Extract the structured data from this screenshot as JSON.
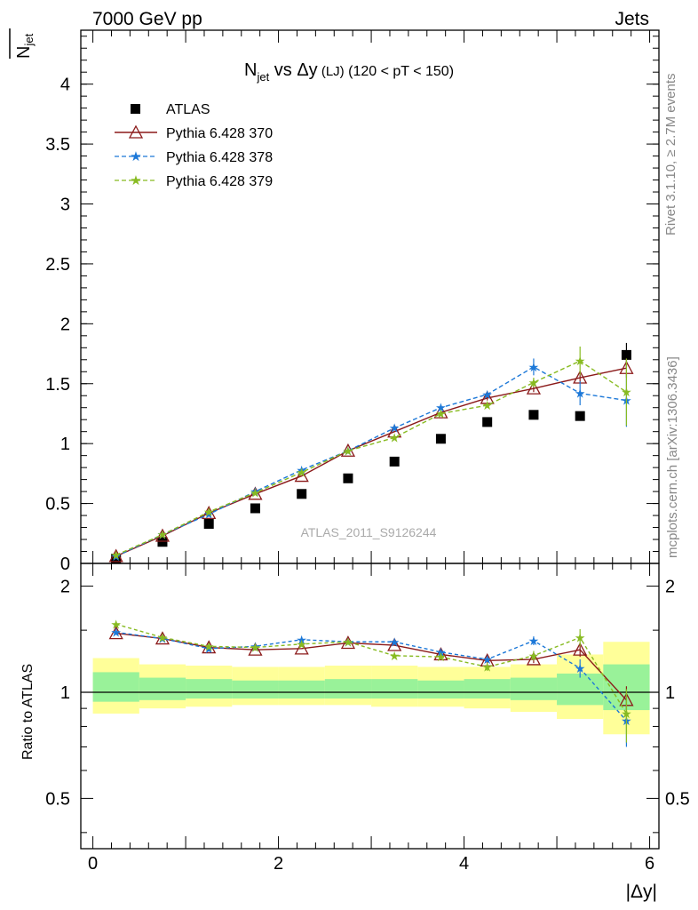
{
  "header": {
    "left": "7000 GeV pp",
    "right": "Jets"
  },
  "side_labels": {
    "rivet": "Rivet 3.1.10, ≥ 2.7M events",
    "mcplots": "mcplots.cern.ch [arXiv:1306.3436]"
  },
  "watermark": "ATLAS_2011_S9126244",
  "colors": {
    "atlas": "#000000",
    "p370": "#8b1a1a",
    "p378": "#1c78d8",
    "p379": "#88bb22",
    "band_outer": "#ffff99",
    "band_inner": "#99f299"
  },
  "chart_data": [
    {
      "type": "line",
      "title": {
        "n": "N",
        "sub": "jet",
        "vs": " vs ",
        "delta_y": "Δy",
        "lj": " (LJ)",
        "cut": " (120 < pT < 150)"
      },
      "ylabel": {
        "n": "N",
        "sub": "jet"
      },
      "xlabel": "|Δy|",
      "xlim": [
        -0.13,
        6.1
      ],
      "ylim": [
        0,
        4.45
      ],
      "y_ticks": [
        0,
        0.5,
        1,
        1.5,
        2,
        2.5,
        3,
        3.5,
        4
      ],
      "y_tick_labels": [
        "0",
        "0.5",
        "1",
        "1.5",
        "2",
        "2.5",
        "3",
        "3.5",
        "4"
      ],
      "x": [
        0.25,
        0.75,
        1.25,
        1.75,
        2.25,
        2.75,
        3.25,
        3.75,
        4.25,
        4.75,
        5.25,
        5.75
      ],
      "legend_position": "top-left",
      "series": [
        {
          "name": "ATLAS",
          "marker": "square",
          "color": "#000000",
          "line": false,
          "values": [
            0.04,
            0.18,
            0.33,
            0.46,
            0.58,
            0.71,
            0.85,
            1.04,
            1.18,
            1.24,
            1.23,
            1.74
          ],
          "errors": [
            0.01,
            0.01,
            0.01,
            0.01,
            0.01,
            0.01,
            0.01,
            0.01,
            0.01,
            0.01,
            0.01,
            0.1
          ]
        },
        {
          "name": "Pythia 6.428 370",
          "marker": "triangle",
          "color": "#8b1a1a",
          "dash": "",
          "values": [
            0.06,
            0.23,
            0.42,
            0.58,
            0.73,
            0.94,
            1.1,
            1.26,
            1.38,
            1.46,
            1.55,
            1.63
          ],
          "errors": [
            0,
            0,
            0,
            0,
            0,
            0,
            0,
            0,
            0.02,
            0.03,
            0.05,
            0.08
          ]
        },
        {
          "name": "Pythia 6.428 378",
          "marker": "star",
          "color": "#1c78d8",
          "dash": "5,3",
          "values": [
            0.06,
            0.24,
            0.41,
            0.6,
            0.78,
            0.94,
            1.13,
            1.3,
            1.41,
            1.64,
            1.42,
            1.36
          ],
          "errors": [
            0,
            0,
            0,
            0,
            0,
            0,
            0,
            0,
            0.02,
            0.07,
            0.1,
            0.22
          ]
        },
        {
          "name": "Pythia 6.428 379",
          "marker": "star",
          "color": "#88bb22",
          "dash": "5,3",
          "values": [
            0.07,
            0.24,
            0.43,
            0.59,
            0.76,
            0.94,
            1.05,
            1.25,
            1.32,
            1.51,
            1.69,
            1.43
          ],
          "errors": [
            0,
            0,
            0,
            0,
            0,
            0,
            0,
            0,
            0.02,
            0.04,
            0.12,
            0.28
          ]
        }
      ]
    },
    {
      "type": "line",
      "ylabel": "Ratio to ATLAS",
      "xlabel": "|Δy|",
      "xlim": [
        -0.13,
        6.1
      ],
      "ylim": [
        0.36,
        2.32
      ],
      "y_scale": "log",
      "y_ticks": [
        0.5,
        1,
        2
      ],
      "y_tick_labels": [
        "0.5",
        "1",
        "2"
      ],
      "x_ticks": [
        0,
        2,
        4,
        6
      ],
      "x_tick_labels": [
        "0",
        "2",
        "4",
        "6"
      ],
      "x": [
        0.25,
        0.75,
        1.25,
        1.75,
        2.25,
        2.75,
        3.25,
        3.75,
        4.25,
        4.75,
        5.25,
        5.75
      ],
      "reference_line": 1,
      "bands": {
        "edges": [
          0,
          0.5,
          1,
          1.5,
          2,
          2.5,
          3,
          3.5,
          4,
          4.5,
          5,
          5.5,
          6
        ],
        "outer": [
          [
            0.87,
            1.25
          ],
          [
            0.9,
            1.2
          ],
          [
            0.91,
            1.19
          ],
          [
            0.92,
            1.18
          ],
          [
            0.92,
            1.18
          ],
          [
            0.92,
            1.19
          ],
          [
            0.91,
            1.19
          ],
          [
            0.91,
            1.18
          ],
          [
            0.9,
            1.18
          ],
          [
            0.88,
            1.2
          ],
          [
            0.84,
            1.28
          ],
          [
            0.76,
            1.39
          ]
        ],
        "inner": [
          [
            0.94,
            1.14
          ],
          [
            0.95,
            1.1
          ],
          [
            0.96,
            1.09
          ],
          [
            0.96,
            1.08
          ],
          [
            0.96,
            1.08
          ],
          [
            0.96,
            1.09
          ],
          [
            0.96,
            1.09
          ],
          [
            0.96,
            1.08
          ],
          [
            0.96,
            1.09
          ],
          [
            0.95,
            1.1
          ],
          [
            0.92,
            1.13
          ],
          [
            0.89,
            1.2
          ]
        ]
      },
      "series": [
        {
          "name": "Pythia 6.428 370",
          "marker": "triangle",
          "color": "#8b1a1a",
          "dash": "",
          "values": [
            1.47,
            1.42,
            1.34,
            1.32,
            1.33,
            1.38,
            1.36,
            1.28,
            1.23,
            1.24,
            1.32,
            0.95
          ],
          "errors": [
            0,
            0,
            0,
            0,
            0,
            0,
            0,
            0,
            0.02,
            0.03,
            0.06,
            0.09
          ]
        },
        {
          "name": "Pythia 6.428 378",
          "marker": "star",
          "color": "#1c78d8",
          "dash": "4,3",
          "values": [
            1.48,
            1.42,
            1.33,
            1.35,
            1.41,
            1.39,
            1.39,
            1.3,
            1.24,
            1.4,
            1.17,
            0.83
          ],
          "errors": [
            0,
            0,
            0,
            0,
            0,
            0,
            0,
            0,
            0.02,
            0.04,
            0.07,
            0.13
          ]
        },
        {
          "name": "Pythia 6.428 379",
          "marker": "star",
          "color": "#88bb22",
          "dash": "4,3",
          "values": [
            1.56,
            1.43,
            1.35,
            1.34,
            1.37,
            1.39,
            1.27,
            1.26,
            1.18,
            1.27,
            1.43,
            0.87
          ],
          "errors": [
            0,
            0,
            0,
            0,
            0,
            0,
            0,
            0,
            0.03,
            0.04,
            0.08,
            0.15
          ]
        }
      ]
    }
  ]
}
